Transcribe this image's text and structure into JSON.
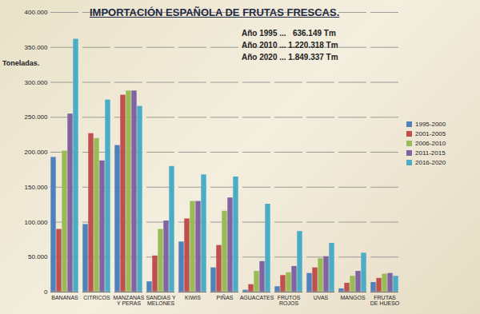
{
  "chart_data": {
    "type": "bar",
    "title": "IMPORTACIÓN ESPAÑOLA DE FRUTAS FRESCAS.",
    "y_label": "Toneladas.",
    "annotations": [
      "Año 1995 ...   636.149 Tm",
      "Año 2010 ... 1.220.318 Tm",
      "Año 2020 ... 1.849.337 Tm"
    ],
    "categories": [
      "BANANAS",
      "CITRICOS",
      "MANZANAS Y PERAS",
      "SANDIAS Y MELONES",
      "KIWIS",
      "PIÑAS",
      "AGUACATES",
      "FRUTOS ROJOS",
      "UVAS",
      "MANGOS",
      "FRUTAS DE HUESO"
    ],
    "series": [
      {
        "name": "1995-2000",
        "color": "#4f81bd",
        "values": [
          193000,
          97000,
          210000,
          15000,
          72000,
          35000,
          3000,
          8000,
          27000,
          5000,
          14000
        ]
      },
      {
        "name": "2001-2005",
        "color": "#c0504d",
        "values": [
          90000,
          227000,
          282000,
          52000,
          105000,
          67000,
          11000,
          24000,
          35000,
          13000,
          20000
        ]
      },
      {
        "name": "2006-2010",
        "color": "#9bbb59",
        "values": [
          202000,
          220000,
          288000,
          90000,
          130000,
          116000,
          30000,
          28000,
          48000,
          23000,
          26000
        ]
      },
      {
        "name": "2011-2015",
        "color": "#8064a2",
        "values": [
          255000,
          188000,
          288000,
          102000,
          130000,
          135000,
          44000,
          37000,
          51000,
          30000,
          27000
        ]
      },
      {
        "name": "2016-2020",
        "color": "#4bacc6",
        "values": [
          362000,
          275000,
          266000,
          180000,
          168000,
          165000,
          126000,
          87000,
          70000,
          56000,
          23000
        ]
      }
    ],
    "ylim": [
      0,
      400000
    ],
    "yticks": [
      0,
      {
        "value": 50000,
        "label": "50.000"
      },
      {
        "value": 100000,
        "label": "100.000"
      },
      {
        "value": 150000,
        "label": "150.000"
      },
      {
        "value": 200000,
        "label": "200.000"
      },
      {
        "value": 250000,
        "label": "250.000"
      },
      {
        "value": 300000,
        "label": "300.000"
      },
      {
        "value": 350000,
        "label": "350.000"
      },
      {
        "value": 400000,
        "label": "400.000"
      }
    ],
    "grid": true,
    "legend": "right"
  }
}
